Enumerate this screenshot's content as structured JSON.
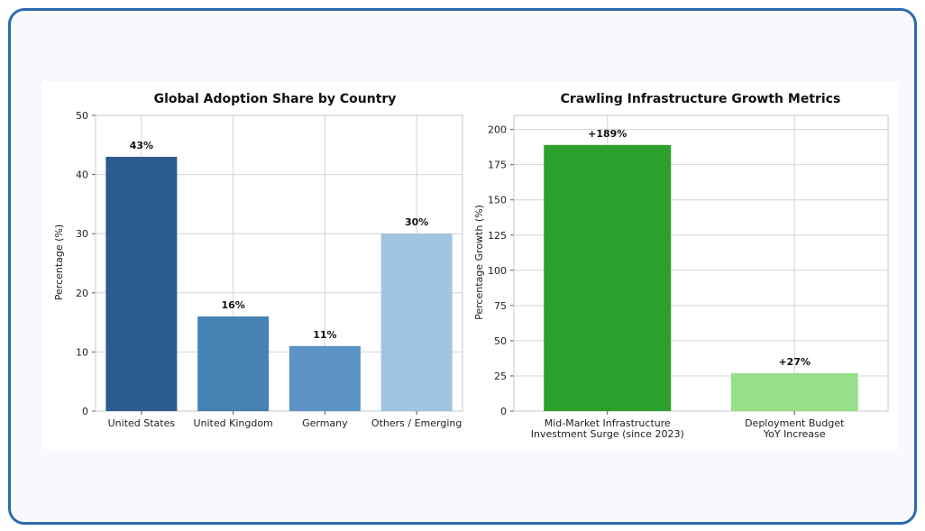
{
  "chart_data": [
    {
      "type": "bar",
      "title": "Global Adoption Share by Country",
      "xlabel": "",
      "ylabel": "Percentage (%)",
      "categories": [
        "United States",
        "United Kingdom",
        "Germany",
        "Others / Emerging"
      ],
      "values": [
        43,
        16,
        11,
        30
      ],
      "data_labels": [
        "43%",
        "16%",
        "11%",
        "30%"
      ],
      "colors": [
        "#2b5c8f",
        "#4682b4",
        "#5b93c7",
        "#a0c4e2"
      ],
      "ylim": [
        0,
        50
      ],
      "yticks": [
        0,
        10,
        20,
        30,
        40,
        50
      ],
      "grid": true
    },
    {
      "type": "bar",
      "title": "Crawling Infrastructure Growth Metrics",
      "xlabel": "",
      "ylabel": "Percentage Growth (%)",
      "categories": [
        [
          "Mid-Market Infrastructure",
          "Investment Surge (since 2023)"
        ],
        [
          "Deployment Budget",
          "YoY Increase"
        ]
      ],
      "values": [
        189,
        27
      ],
      "data_labels": [
        "+189%",
        "+27%"
      ],
      "colors": [
        "#2ca02c",
        "#98df8a"
      ],
      "ylim": [
        0,
        210
      ],
      "yticks": [
        0,
        25,
        50,
        75,
        100,
        125,
        150,
        175,
        200
      ],
      "grid": true
    }
  ]
}
